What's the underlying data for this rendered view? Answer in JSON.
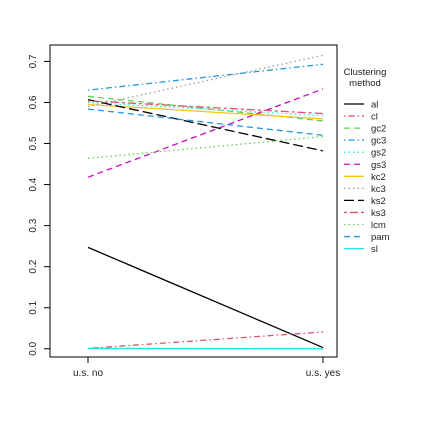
{
  "chart_data": {
    "type": "line",
    "title": "",
    "xlabel": "",
    "ylabel": "",
    "categories": [
      "u.s. no",
      "u.s. yes"
    ],
    "ylim": [
      -0.02,
      0.74
    ],
    "yticks": [
      0.0,
      0.1,
      0.2,
      0.3,
      0.4,
      0.5,
      0.6,
      0.7
    ],
    "ytick_labels": [
      "0.0",
      "0.1",
      "0.2",
      "0.3",
      "0.4",
      "0.5",
      "0.6",
      "0.7"
    ],
    "grid": false,
    "legend": {
      "title_lines": [
        "Clustering",
        "method"
      ],
      "position": "right"
    },
    "series": [
      {
        "name": "al",
        "values": [
          0.247,
          0.003
        ],
        "color": "#000000",
        "dash": "solid"
      },
      {
        "name": "cl",
        "values": [
          0.001,
          0.041
        ],
        "color": "#DF536B",
        "dash": "dashdot"
      },
      {
        "name": "gc2",
        "values": [
          0.615,
          0.555
        ],
        "color": "#61D04F",
        "dash": "dash"
      },
      {
        "name": "gc3",
        "values": [
          0.63,
          0.693
        ],
        "color": "#2297E6",
        "dash": "dashdot"
      },
      {
        "name": "gs2",
        "values": [
          0.6,
          0.568
        ],
        "color": "#28E2E5",
        "dash": "dotted"
      },
      {
        "name": "gs3",
        "values": [
          0.418,
          0.633
        ],
        "color": "#CD0BBC",
        "dash": "dash"
      },
      {
        "name": "kc2",
        "values": [
          0.595,
          0.56
        ],
        "color": "#F5C710",
        "dash": "solid"
      },
      {
        "name": "kc3",
        "values": [
          0.59,
          0.715
        ],
        "color": "#9E9E9E",
        "dash": "dotted"
      },
      {
        "name": "ks2",
        "values": [
          0.607,
          0.482
        ],
        "color": "#000000",
        "dash": "longdash"
      },
      {
        "name": "ks3",
        "values": [
          0.604,
          0.573
        ],
        "color": "#DF536B",
        "dash": "twodash"
      },
      {
        "name": "lcm",
        "values": [
          0.464,
          0.517
        ],
        "color": "#61D04F",
        "dash": "dotted"
      },
      {
        "name": "pam",
        "values": [
          0.584,
          0.52
        ],
        "color": "#2297E6",
        "dash": "dash"
      },
      {
        "name": "sl",
        "values": [
          0.001,
          0.0
        ],
        "color": "#28E2E5",
        "dash": "solid"
      }
    ]
  }
}
